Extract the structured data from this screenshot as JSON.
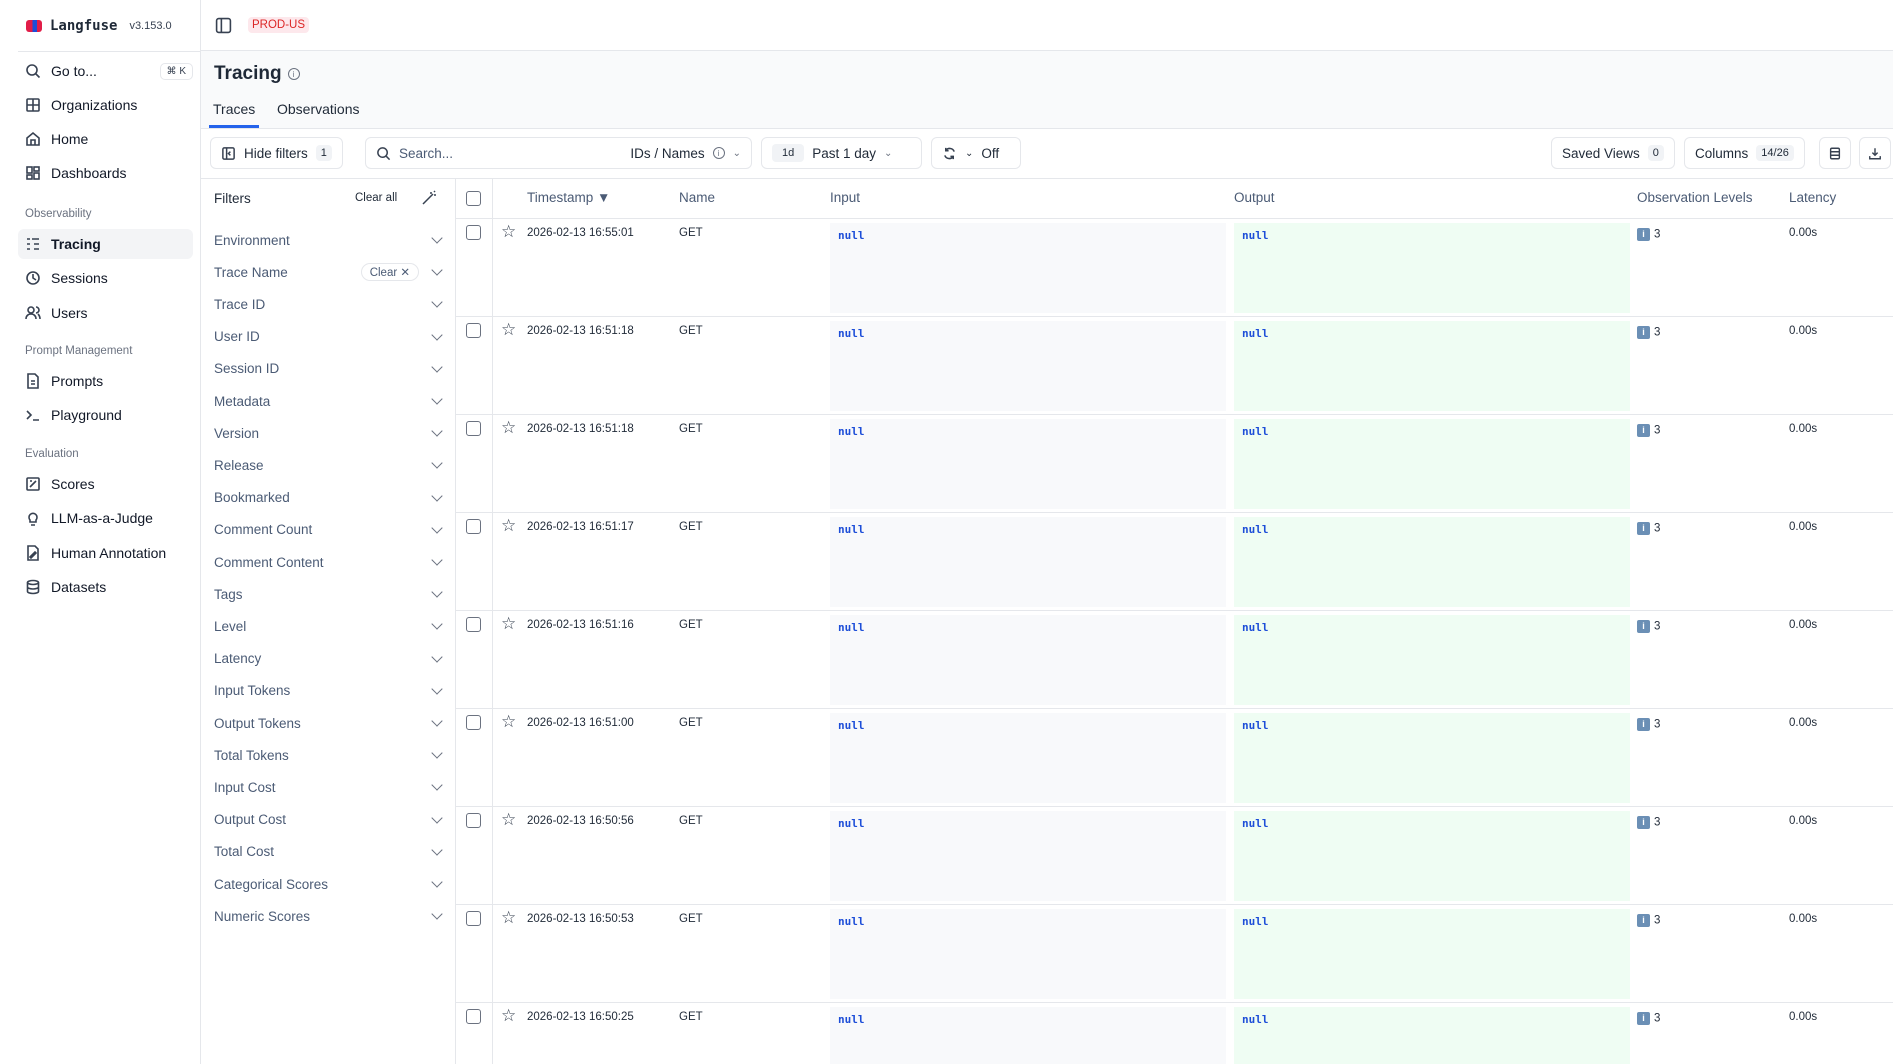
{
  "app": {
    "name": "Langfuse",
    "version": "v3.153.0",
    "environment": "PROD-US"
  },
  "sidebar": {
    "goto": {
      "label": "Go to...",
      "shortcut": "⌘ K"
    },
    "top_items": [
      {
        "label": "Organizations",
        "icon": "grid-icon"
      },
      {
        "label": "Home",
        "icon": "home-icon"
      },
      {
        "label": "Dashboards",
        "icon": "dashboard-icon"
      }
    ],
    "groups": [
      {
        "label": "Observability",
        "items": [
          {
            "label": "Tracing",
            "icon": "tracing-icon",
            "active": true
          },
          {
            "label": "Sessions",
            "icon": "clock-icon"
          },
          {
            "label": "Users",
            "icon": "users-icon"
          }
        ]
      },
      {
        "label": "Prompt Management",
        "items": [
          {
            "label": "Prompts",
            "icon": "file-icon"
          },
          {
            "label": "Playground",
            "icon": "terminal-icon"
          }
        ]
      },
      {
        "label": "Evaluation",
        "items": [
          {
            "label": "Scores",
            "icon": "score-icon"
          },
          {
            "label": "LLM-as-a-Judge",
            "icon": "lightbulb-icon"
          },
          {
            "label": "Human Annotation",
            "icon": "annotation-icon"
          },
          {
            "label": "Datasets",
            "icon": "database-icon"
          }
        ]
      }
    ]
  },
  "page": {
    "title": "Tracing",
    "tabs": [
      {
        "label": "Traces",
        "active": true
      },
      {
        "label": "Observations"
      }
    ]
  },
  "toolbar": {
    "hide_filters": "Hide filters",
    "filter_count": "1",
    "search_placeholder": "Search...",
    "search_mode": "IDs / Names",
    "range_short": "1d",
    "range_label": "Past 1 day",
    "refresh": "Off",
    "saved_views": "Saved Views",
    "saved_views_count": "0",
    "columns": "Columns",
    "columns_count": "14/26"
  },
  "filters": {
    "title": "Filters",
    "clear_all": "Clear all",
    "clear_label": "Clear",
    "items": [
      "Environment",
      "Trace Name",
      "Trace ID",
      "User ID",
      "Session ID",
      "Metadata",
      "Version",
      "Release",
      "Bookmarked",
      "Comment Count",
      "Comment Content",
      "Tags",
      "Level",
      "Latency",
      "Input Tokens",
      "Output Tokens",
      "Total Tokens",
      "Input Cost",
      "Output Cost",
      "Total Cost",
      "Categorical Scores",
      "Numeric Scores"
    ],
    "active": "Trace Name"
  },
  "table": {
    "headers": {
      "timestamp": "Timestamp ▼",
      "name": "Name",
      "input": "Input",
      "output": "Output",
      "levels": "Observation Levels",
      "latency": "Latency"
    },
    "rows": [
      {
        "timestamp": "2026-02-13 16:55:01",
        "name": "GET",
        "input": "null",
        "output": "null",
        "levels": "3",
        "latency": "0.00s"
      },
      {
        "timestamp": "2026-02-13 16:51:18",
        "name": "GET",
        "input": "null",
        "output": "null",
        "levels": "3",
        "latency": "0.00s"
      },
      {
        "timestamp": "2026-02-13 16:51:18",
        "name": "GET",
        "input": "null",
        "output": "null",
        "levels": "3",
        "latency": "0.00s"
      },
      {
        "timestamp": "2026-02-13 16:51:17",
        "name": "GET",
        "input": "null",
        "output": "null",
        "levels": "3",
        "latency": "0.00s"
      },
      {
        "timestamp": "2026-02-13 16:51:16",
        "name": "GET",
        "input": "null",
        "output": "null",
        "levels": "3",
        "latency": "0.00s"
      },
      {
        "timestamp": "2026-02-13 16:51:00",
        "name": "GET",
        "input": "null",
        "output": "null",
        "levels": "3",
        "latency": "0.00s"
      },
      {
        "timestamp": "2026-02-13 16:50:56",
        "name": "GET",
        "input": "null",
        "output": "null",
        "levels": "3",
        "latency": "0.00s"
      },
      {
        "timestamp": "2026-02-13 16:50:53",
        "name": "GET",
        "input": "null",
        "output": "null",
        "levels": "3",
        "latency": "0.00s"
      },
      {
        "timestamp": "2026-02-13 16:50:25",
        "name": "GET",
        "input": "null",
        "output": "null",
        "levels": "3",
        "latency": "0.00s"
      }
    ]
  },
  "colors": {
    "accent": "#2563eb",
    "input_bg": "#f8f9fb",
    "output_bg": "#effdf3",
    "null_text": "#1d4ed8",
    "env_badge_bg": "#fde8ec",
    "env_badge_text": "#dc2626"
  }
}
